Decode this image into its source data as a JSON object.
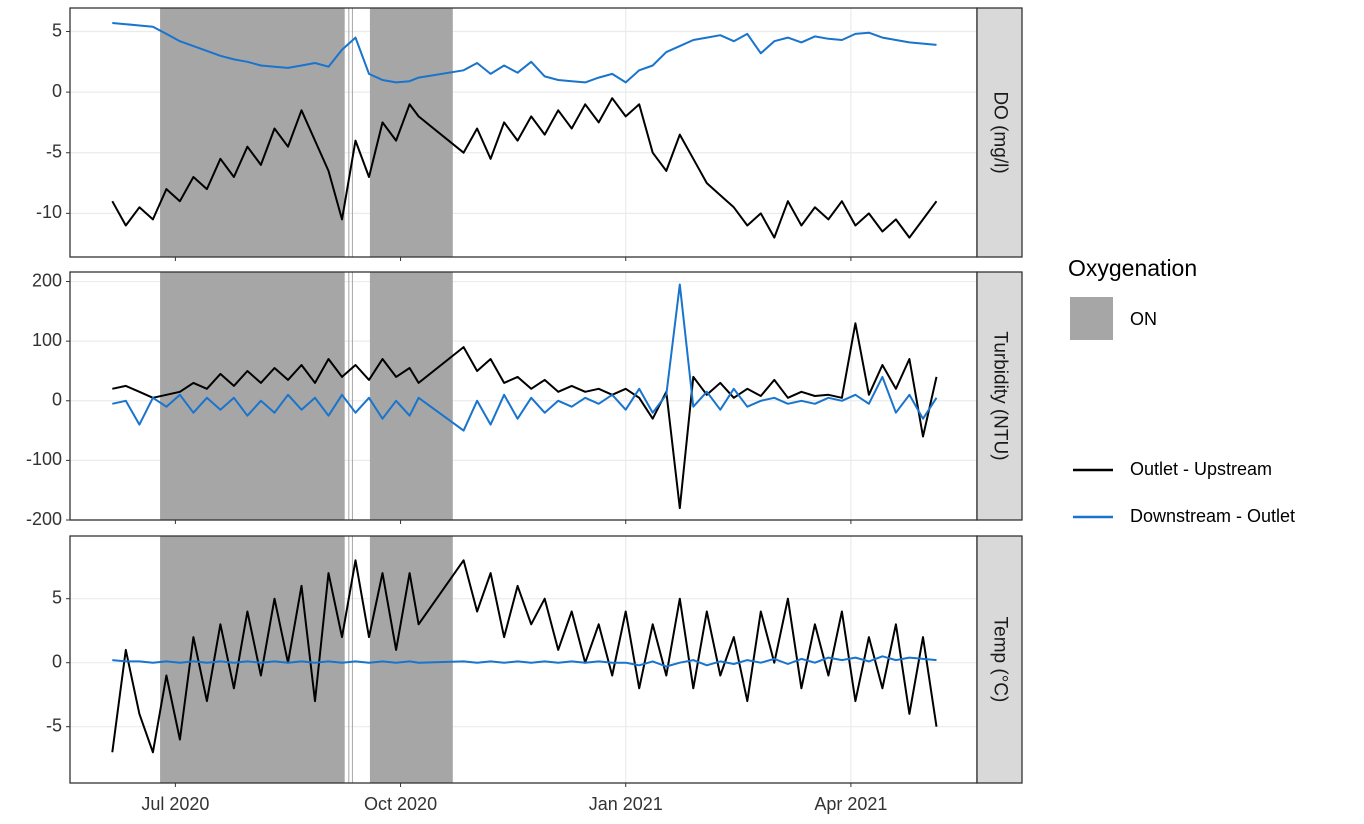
{
  "chart_data": [
    {
      "type": "line",
      "facet_label": "DO (mg/l)",
      "x": [
        2020.43,
        2020.445,
        2020.46,
        2020.475,
        2020.49,
        2020.505,
        2020.52,
        2020.535,
        2020.55,
        2020.565,
        2020.58,
        2020.595,
        2020.61,
        2020.625,
        2020.64,
        2020.655,
        2020.67,
        2020.685,
        2020.7,
        2020.715,
        2020.73,
        2020.745,
        2020.76,
        2020.77,
        2020.82,
        2020.835,
        2020.85,
        2020.865,
        2020.88,
        2020.895,
        2020.91,
        2020.925,
        2020.94,
        2020.955,
        2020.97,
        2020.985,
        2021.0,
        2021.015,
        2021.03,
        2021.045,
        2021.06,
        2021.075,
        2021.09,
        2021.105,
        2021.12,
        2021.135,
        2021.15,
        2021.165,
        2021.18,
        2021.195,
        2021.21,
        2021.225,
        2021.24,
        2021.255,
        2021.27,
        2021.285,
        2021.3,
        2021.315,
        2021.33,
        2021.345
      ],
      "series": [
        {
          "name": "Outlet - Upstream",
          "color": "#000000",
          "values": [
            -9,
            -11,
            -9.5,
            -10.5,
            -8,
            -9,
            -7,
            -8,
            -5.5,
            -7,
            -4.5,
            -6,
            -3,
            -4.5,
            -1.5,
            -4,
            -6.5,
            -10.5,
            -4,
            -7,
            -2.5,
            -4,
            -1,
            -2,
            -5,
            -3,
            -5.5,
            -2.5,
            -4,
            -2,
            -3.5,
            -1.5,
            -3,
            -1,
            -2.5,
            -0.5,
            -2,
            -1,
            -5,
            -6.5,
            -3.5,
            -5.5,
            -7.5,
            -8.5,
            -9.5,
            -11,
            -10,
            -12,
            -9,
            -11,
            -9.5,
            -10.5,
            -9,
            -11,
            -10,
            -11.5,
            -10.5,
            -12,
            -10.5,
            -9
          ]
        },
        {
          "name": "Downstream - Outlet",
          "color": "#1874cd",
          "values": [
            5.7,
            5.6,
            5.5,
            5.4,
            4.8,
            4.2,
            3.8,
            3.4,
            3.0,
            2.7,
            2.5,
            2.2,
            2.1,
            2.0,
            2.2,
            2.4,
            2.1,
            3.5,
            4.5,
            1.5,
            1.0,
            0.8,
            0.9,
            1.2,
            1.8,
            2.4,
            1.5,
            2.2,
            1.6,
            2.5,
            1.3,
            1.0,
            0.9,
            0.8,
            1.2,
            1.5,
            0.8,
            1.8,
            2.2,
            3.3,
            3.8,
            4.3,
            4.5,
            4.7,
            4.2,
            4.8,
            3.2,
            4.2,
            4.5,
            4.1,
            4.6,
            4.4,
            4.3,
            4.8,
            4.9,
            4.5,
            4.3,
            4.1,
            4.0,
            3.9
          ]
        }
      ],
      "xlim": [
        2020.383,
        2021.39
      ],
      "xticks": [
        {
          "value": 2020.5,
          "label": "Jul 2020"
        },
        {
          "value": 2020.75,
          "label": "Oct 2020"
        },
        {
          "value": 2021.0,
          "label": "Jan 2021"
        },
        {
          "value": 2021.25,
          "label": "Apr 2021"
        }
      ],
      "ylim": [
        -13.6,
        6.94
      ],
      "yticks": [
        5,
        0,
        -5,
        -10
      ],
      "grid": true
    },
    {
      "type": "line",
      "facet_label": "Turbidity (NTU)",
      "x": [
        2020.43,
        2020.445,
        2020.46,
        2020.475,
        2020.49,
        2020.505,
        2020.52,
        2020.535,
        2020.55,
        2020.565,
        2020.58,
        2020.595,
        2020.61,
        2020.625,
        2020.64,
        2020.655,
        2020.67,
        2020.685,
        2020.7,
        2020.715,
        2020.73,
        2020.745,
        2020.76,
        2020.77,
        2020.82,
        2020.835,
        2020.85,
        2020.865,
        2020.88,
        2020.895,
        2020.91,
        2020.925,
        2020.94,
        2020.955,
        2020.97,
        2020.985,
        2021.0,
        2021.015,
        2021.03,
        2021.045,
        2021.06,
        2021.075,
        2021.09,
        2021.105,
        2021.12,
        2021.135,
        2021.15,
        2021.165,
        2021.18,
        2021.195,
        2021.21,
        2021.225,
        2021.24,
        2021.255,
        2021.27,
        2021.285,
        2021.3,
        2021.315,
        2021.33,
        2021.345
      ],
      "series": [
        {
          "name": "Outlet - Upstream",
          "color": "#000000",
          "values": [
            20,
            25,
            15,
            5,
            10,
            15,
            30,
            20,
            45,
            25,
            50,
            30,
            55,
            35,
            60,
            30,
            70,
            40,
            60,
            35,
            70,
            40,
            55,
            30,
            90,
            50,
            70,
            30,
            40,
            20,
            35,
            15,
            25,
            15,
            20,
            10,
            20,
            5,
            -30,
            15,
            -180,
            40,
            10,
            30,
            5,
            20,
            8,
            35,
            5,
            15,
            8,
            10,
            5,
            130,
            10,
            60,
            20,
            70,
            -60,
            40
          ]
        },
        {
          "name": "Downstream - Outlet",
          "color": "#1874cd",
          "values": [
            -5,
            0,
            -40,
            5,
            -10,
            10,
            -20,
            5,
            -15,
            5,
            -25,
            0,
            -20,
            10,
            -15,
            5,
            -25,
            10,
            -20,
            5,
            -30,
            0,
            -25,
            5,
            -50,
            0,
            -40,
            10,
            -30,
            5,
            -20,
            0,
            -10,
            5,
            -5,
            10,
            -15,
            20,
            -20,
            10,
            195,
            -10,
            15,
            -15,
            20,
            -10,
            0,
            5,
            -5,
            0,
            -5,
            5,
            0,
            10,
            -5,
            40,
            -20,
            10,
            -30,
            5
          ]
        }
      ],
      "xlim": [
        2020.383,
        2021.39
      ],
      "xticks": [
        {
          "value": 2020.5,
          "label": "Jul 2020"
        },
        {
          "value": 2020.75,
          "label": "Oct 2020"
        },
        {
          "value": 2021.0,
          "label": "Jan 2021"
        },
        {
          "value": 2021.25,
          "label": "Apr 2021"
        }
      ],
      "ylim": [
        -200,
        216
      ],
      "yticks": [
        200,
        100,
        0,
        -100,
        -200
      ],
      "grid": true
    },
    {
      "type": "line",
      "facet_label": "Temp (°C)",
      "x": [
        2020.43,
        2020.445,
        2020.46,
        2020.475,
        2020.49,
        2020.505,
        2020.52,
        2020.535,
        2020.55,
        2020.565,
        2020.58,
        2020.595,
        2020.61,
        2020.625,
        2020.64,
        2020.655,
        2020.67,
        2020.685,
        2020.7,
        2020.715,
        2020.73,
        2020.745,
        2020.76,
        2020.77,
        2020.82,
        2020.835,
        2020.85,
        2020.865,
        2020.88,
        2020.895,
        2020.91,
        2020.925,
        2020.94,
        2020.955,
        2020.97,
        2020.985,
        2021.0,
        2021.015,
        2021.03,
        2021.045,
        2021.06,
        2021.075,
        2021.09,
        2021.105,
        2021.12,
        2021.135,
        2021.15,
        2021.165,
        2021.18,
        2021.195,
        2021.21,
        2021.225,
        2021.24,
        2021.255,
        2021.27,
        2021.285,
        2021.3,
        2021.315,
        2021.33,
        2021.345
      ],
      "series": [
        {
          "name": "Outlet - Upstream",
          "color": "#000000",
          "values": [
            -7,
            1,
            -4,
            -7,
            -1,
            -6,
            2,
            -3,
            3,
            -2,
            4,
            -1,
            5,
            0,
            6,
            -3,
            7,
            2,
            8,
            2,
            7,
            1,
            7,
            3,
            8,
            4,
            7,
            2,
            6,
            3,
            5,
            1,
            4,
            0,
            3,
            -1,
            4,
            -2,
            3,
            -1,
            5,
            -2,
            4,
            -1,
            2,
            -3,
            4,
            0,
            5,
            -2,
            3,
            -1,
            4,
            -3,
            2,
            -2,
            3,
            -4,
            2,
            -5
          ]
        },
        {
          "name": "Downstream - Outlet",
          "color": "#1874cd",
          "values": [
            0.2,
            0.1,
            0.1,
            0,
            0.1,
            0,
            0.1,
            0,
            0.1,
            0,
            0.1,
            0,
            0.1,
            0,
            0.1,
            0,
            0.1,
            0,
            0.1,
            0,
            0.1,
            0,
            0.1,
            0,
            0.1,
            0,
            0.1,
            0,
            0.1,
            0,
            0.1,
            0,
            0.1,
            0,
            0.1,
            0,
            0,
            -0.2,
            0.1,
            -0.3,
            0,
            0.2,
            -0.2,
            0.1,
            -0.1,
            0.2,
            0,
            0.3,
            -0.1,
            0.3,
            0,
            0.4,
            0.2,
            0.4,
            0.1,
            0.5,
            0.2,
            0.4,
            0.3,
            0.2
          ]
        }
      ],
      "xlim": [
        2020.383,
        2021.39
      ],
      "xticks": [
        {
          "value": 2020.5,
          "label": "Jul 2020"
        },
        {
          "value": 2020.75,
          "label": "Oct 2020"
        },
        {
          "value": 2021.0,
          "label": "Jan 2021"
        },
        {
          "value": 2021.25,
          "label": "Apr 2021"
        }
      ],
      "ylim": [
        -9.4,
        9.9
      ],
      "yticks": [
        5,
        0,
        -5
      ],
      "grid": true
    }
  ],
  "shading": {
    "title": "Oxygenation",
    "label": "ON",
    "color": "#a6a6a6",
    "periods": [
      [
        2020.483,
        2020.688
      ],
      [
        2020.692,
        2020.693
      ],
      [
        2020.696,
        2020.697
      ],
      [
        2020.716,
        2020.808
      ]
    ]
  }
}
